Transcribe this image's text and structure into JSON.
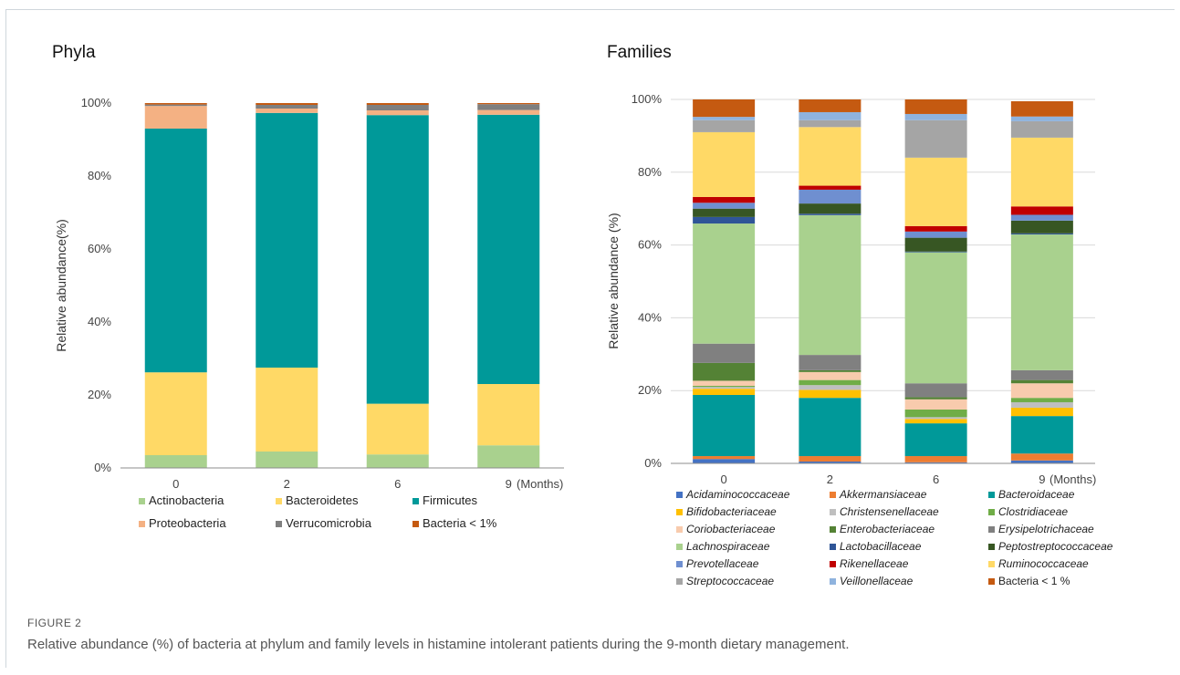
{
  "caption": {
    "label": "FIGURE 2",
    "text": "Relative abundance (%) of bacteria at phylum and family levels in histamine intolerant patients during the 9-month dietary management."
  },
  "chart_data": [
    {
      "type": "bar",
      "stacked": true,
      "title": "Phyla",
      "ylabel": "Relative abundance(%)",
      "xlabel": "",
      "x_unit_label": "(Months)",
      "categories": [
        "0",
        "2",
        "6",
        "9"
      ],
      "ylim": [
        0,
        100
      ],
      "yticks": [
        "0%",
        "20%",
        "40%",
        "60%",
        "80%",
        "100%"
      ],
      "grid": false,
      "legend_position": "bottom",
      "series": [
        {
          "name": "Actinobacteria",
          "color": "#a9d18e",
          "values": [
            3.5,
            4.5,
            3.7,
            6.2
          ]
        },
        {
          "name": "Bacteroidetes",
          "color": "#ffd966",
          "values": [
            22.7,
            23,
            13.9,
            16.8
          ]
        },
        {
          "name": "Firmicutes",
          "color": "#009999",
          "values": [
            66.8,
            69.8,
            79.1,
            73.8
          ]
        },
        {
          "name": "Proteobacteria",
          "color": "#f4b183",
          "values": [
            6.2,
            1.2,
            1.3,
            1.3
          ]
        },
        {
          "name": "Verrucomicrobia",
          "color": "#7f7f7f",
          "values": [
            0.4,
            1,
            1.5,
            1.6
          ]
        },
        {
          "name": "Bacteria < 1%",
          "color": "#c55a11",
          "values": [
            0.4,
            0.5,
            0.5,
            0.3
          ]
        }
      ]
    },
    {
      "type": "bar",
      "stacked": true,
      "title": "Families",
      "ylabel": "Relative abundance (%)",
      "xlabel": "",
      "x_unit_label": "(Months)",
      "categories": [
        "0",
        "2",
        "6",
        "9"
      ],
      "ylim": [
        0,
        100
      ],
      "yticks": [
        "0%",
        "20%",
        "40%",
        "60%",
        "80%",
        "100%"
      ],
      "grid": true,
      "legend_position": "bottom",
      "series": [
        {
          "name": "Acidaminococcaceae",
          "color": "#4472c4",
          "values": [
            1.2,
            0.5,
            0.3,
            0.8
          ]
        },
        {
          "name": "Akkermansiaceae",
          "color": "#ed7d31",
          "values": [
            0.8,
            1.5,
            1.7,
            1.9
          ]
        },
        {
          "name": "Bacteroidaceae",
          "color": "#009999",
          "values": [
            16.8,
            16,
            9,
            10.3
          ]
        },
        {
          "name": "Bifidobacteriaceae",
          "color": "#ffc000",
          "values": [
            1.7,
            2.2,
            1.2,
            2.3
          ]
        },
        {
          "name": "Christensenellaceae",
          "color": "#bfbfbf",
          "values": [
            0.5,
            1.3,
            0.5,
            1.5
          ]
        },
        {
          "name": "Clostridiaceae",
          "color": "#70ad47",
          "values": [
            0.3,
            1.4,
            2.1,
            1.2
          ]
        },
        {
          "name": "Coriobacteriaceae",
          "color": "#f8cbad",
          "values": [
            1.4,
            2.2,
            2.8,
            4
          ]
        },
        {
          "name": "Enterobacteriaceae",
          "color": "#548235",
          "values": [
            4.9,
            0.5,
            0.6,
            0.9
          ]
        },
        {
          "name": "Erysipelotrichaceae",
          "color": "#808080",
          "values": [
            5.3,
            4.2,
            3.8,
            2.7
          ]
        },
        {
          "name": "Lachnospiraceae",
          "color": "#a9d18e",
          "values": [
            33,
            38.4,
            36,
            37.3
          ]
        },
        {
          "name": "Lactobacillaceae",
          "color": "#2f5597",
          "values": [
            1.8,
            0.4,
            0.2,
            0.3
          ]
        },
        {
          "name": "Peptostreptococcaceae",
          "color": "#375623",
          "values": [
            2.3,
            2.8,
            3.8,
            3.5
          ]
        },
        {
          "name": "Prevotellaceae",
          "color": "#6f8fd0",
          "values": [
            1.6,
            3.8,
            1.7,
            1.6
          ]
        },
        {
          "name": "Rikenellaceae",
          "color": "#c00000",
          "values": [
            1.6,
            1.1,
            1.5,
            2.3
          ]
        },
        {
          "name": "Ruminococcaceae",
          "color": "#ffd966",
          "values": [
            17.8,
            16.1,
            18.8,
            18.9
          ]
        },
        {
          "name": "Streptococcaceae",
          "color": "#a5a5a5",
          "values": [
            3.3,
            1.9,
            10.3,
            4.5
          ]
        },
        {
          "name": "Veillonellaceae",
          "color": "#8fb3de",
          "values": [
            0.9,
            2.2,
            1.7,
            1.3
          ]
        },
        {
          "name": "Bacteria < 1 %",
          "color": "#c55a11",
          "values": [
            4.8,
            3.5,
            4,
            4.2
          ]
        }
      ]
    }
  ]
}
